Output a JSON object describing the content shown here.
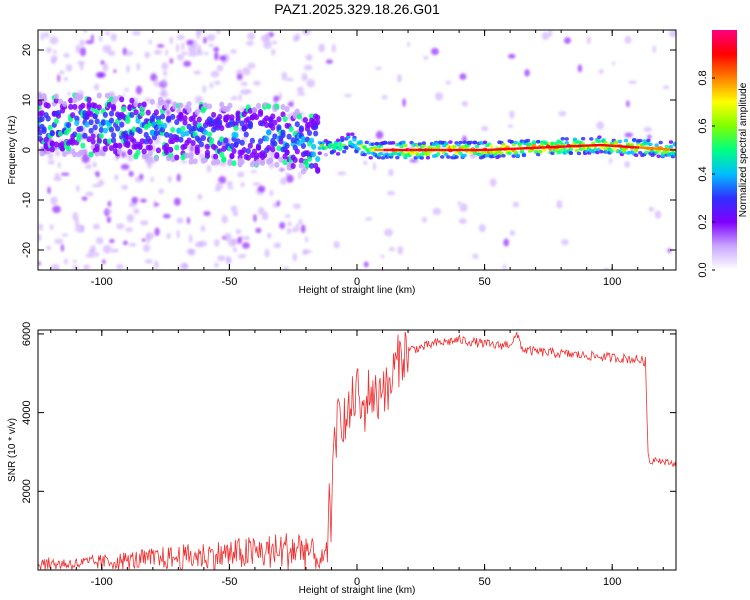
{
  "title": "PAZ1.2025.329.18.26.G01",
  "colorscale": [
    "#ffffff",
    "#c9a6ff",
    "#7f00ff",
    "#3030ff",
    "#00bfff",
    "#00ff80",
    "#80ff00",
    "#ffff00",
    "#ff8000",
    "#ff0000",
    "#ff0080"
  ],
  "chart_data": [
    {
      "type": "heatmap",
      "panel": "spectrogram",
      "xlabel": "Height of straight line (km)",
      "ylabel": "Frequency (Hz)",
      "xlim": [
        -125,
        125
      ],
      "ylim": [
        -24,
        24
      ],
      "xticks": [
        -100,
        -50,
        0,
        50,
        100
      ],
      "yticks": [
        -20,
        -10,
        0,
        10,
        20
      ],
      "grid": false,
      "colorbar": {
        "label": "Normalized spectral amplitude",
        "range": [
          0.0,
          1.0
        ],
        "ticks": [
          "0.0",
          "0.2",
          "0.4",
          "0.6",
          "0.8"
        ]
      },
      "ridge": {
        "description_points": [
          [
            -125,
            5
          ],
          [
            -100,
            5
          ],
          [
            -75,
            4
          ],
          [
            -50,
            3
          ],
          [
            -30,
            3
          ],
          [
            -18,
            1
          ],
          [
            -10,
            0.5
          ],
          [
            -5,
            1
          ],
          [
            -3,
            2
          ],
          [
            0,
            1
          ],
          [
            5,
            0
          ],
          [
            10,
            0
          ],
          [
            50,
            0
          ],
          [
            95,
            1
          ],
          [
            125,
            0
          ]
        ],
        "amplitude_points": [
          [
            -125,
            0.35
          ],
          [
            -100,
            0.4
          ],
          [
            -60,
            0.38
          ],
          [
            -20,
            0.4
          ],
          [
            -15,
            0.55
          ],
          [
            -5,
            0.6
          ],
          [
            5,
            0.7
          ],
          [
            10,
            0.85
          ],
          [
            20,
            0.95
          ],
          [
            60,
            0.9
          ],
          [
            90,
            0.9
          ],
          [
            110,
            0.85
          ],
          [
            125,
            0.8
          ]
        ]
      }
    },
    {
      "type": "line",
      "panel": "snr",
      "xlabel": "Height of straight line (km)",
      "ylabel": "SNR (10 * v/v)",
      "xlim": [
        -125,
        125
      ],
      "ylim": [
        0,
        6100
      ],
      "xticks": [
        -100,
        -50,
        0,
        50,
        100
      ],
      "yticks": [
        2000,
        4000,
        6000
      ],
      "color": "#ee3030",
      "grid": false,
      "series": [
        {
          "x": [
            -125,
            -110,
            -100,
            -90,
            -80,
            -70,
            -60,
            -50,
            -40,
            -30,
            -20,
            -15,
            -12,
            -10,
            -9,
            -8,
            -6,
            -4,
            -2,
            0,
            2,
            5,
            8,
            10,
            12,
            15,
            18,
            20,
            25,
            30,
            35,
            40,
            45,
            50,
            55,
            60,
            62,
            63,
            65,
            70,
            80,
            90,
            100,
            110,
            113,
            114,
            115,
            117,
            120,
            125
          ],
          "y": [
            200,
            200,
            250,
            300,
            350,
            400,
            450,
            500,
            550,
            600,
            700,
            300,
            400,
            2200,
            2800,
            3600,
            4000,
            3700,
            4200,
            4600,
            3900,
            4600,
            4300,
            4900,
            4400,
            5200,
            5500,
            5600,
            5650,
            5750,
            5800,
            5850,
            5800,
            5750,
            5700,
            5750,
            5900,
            5950,
            5600,
            5550,
            5500,
            5450,
            5400,
            5350,
            5300,
            3000,
            2700,
            2850,
            2750,
            2700
          ]
        }
      ]
    }
  ]
}
